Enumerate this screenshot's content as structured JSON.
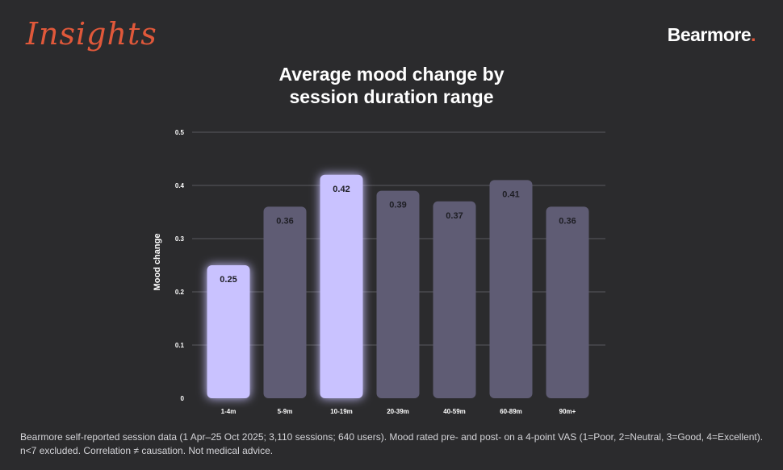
{
  "brand": {
    "insights_label": "Insights",
    "logo_text": "Bearmore",
    "logo_dot": ".",
    "accent_color": "#e0583a"
  },
  "chart_data": {
    "type": "bar",
    "title_line1": "Average mood change by",
    "title_line2": "session duration range",
    "xlabel": "",
    "ylabel": "Mood change",
    "ylim": [
      0,
      0.5
    ],
    "yticks": [
      "0",
      "0.1",
      "0.2",
      "0.3",
      "0.4",
      "0.5"
    ],
    "grid": true,
    "categories": [
      "1-4m",
      "5-9m",
      "10-19m",
      "20-39m",
      "40-59m",
      "60-89m",
      "90m+"
    ],
    "values": [
      0.25,
      0.36,
      0.42,
      0.39,
      0.37,
      0.41,
      0.36
    ],
    "value_labels": [
      "0.25",
      "0.36",
      "0.42",
      "0.39",
      "0.37",
      "0.41",
      "0.36"
    ],
    "highlighted": [
      true,
      false,
      true,
      false,
      false,
      false,
      false
    ],
    "colors": {
      "highlight": "#c9c2ff",
      "normal": "#5f5c74",
      "grid": "#5a5a5e"
    }
  },
  "footnote": {
    "line1": "Bearmore self-reported session data (1 Apr–25 Oct 2025; 3,110 sessions; 640 users). Mood rated pre- and post- on a 4-point VAS (1=Poor, 2=Neutral, 3=Good, 4=Excellent).",
    "line2": "n<7 excluded. Correlation ≠ causation. Not medical advice."
  }
}
